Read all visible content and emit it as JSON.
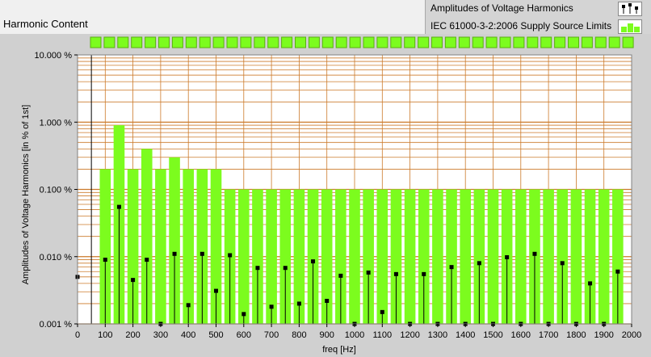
{
  "title": "Harmonic Content",
  "legend": {
    "items": [
      {
        "label": "Amplitudes of Voltage Harmonics",
        "icon": "stem-plot-icon"
      },
      {
        "label": "IEC 61000-3-2:2006 Supply Source Limits",
        "icon": "green-bar-icon"
      }
    ]
  },
  "colors": {
    "bar": "#7cfc1e",
    "grid": "#cc7a2a",
    "stem": "#000000",
    "plot_bg": "#ffffff"
  },
  "chart_data": {
    "type": "bar",
    "xlabel": "freq [Hz]",
    "ylabel": "Amplitudes of Voltage Harmonics [in % of 1st]",
    "x_ticks": [
      "0",
      "100",
      "200",
      "300",
      "400",
      "500",
      "600",
      "700",
      "800",
      "900",
      "1000",
      "1100",
      "1200",
      "1300",
      "1400",
      "1500",
      "1600",
      "1700",
      "1800",
      "1900",
      "2000"
    ],
    "y_ticks": [
      "10.000 %",
      "1.000 %",
      "0.100 %",
      "0.010 %",
      "0.001 %"
    ],
    "xlim": [
      0,
      2000
    ],
    "ylim": [
      0.001,
      10
    ],
    "yscale": "log",
    "series": [
      {
        "name": "IEC 61000-3-2:2006 Supply Source Limits",
        "type": "bar",
        "x": [
          100,
          150,
          200,
          250,
          300,
          350,
          400,
          450,
          500,
          550,
          600,
          650,
          700,
          750,
          800,
          850,
          900,
          950,
          1000,
          1050,
          1100,
          1150,
          1200,
          1250,
          1300,
          1350,
          1400,
          1450,
          1500,
          1550,
          1600,
          1650,
          1700,
          1750,
          1800,
          1850,
          1900,
          1950
        ],
        "values": [
          0.2,
          0.9,
          0.2,
          0.4,
          0.2,
          0.3,
          0.2,
          0.2,
          0.2,
          0.1,
          0.1,
          0.1,
          0.1,
          0.1,
          0.1,
          0.1,
          0.1,
          0.1,
          0.1,
          0.1,
          0.1,
          0.1,
          0.1,
          0.1,
          0.1,
          0.1,
          0.1,
          0.1,
          0.1,
          0.1,
          0.1,
          0.1,
          0.1,
          0.1,
          0.1,
          0.1,
          0.1,
          0.1
        ]
      },
      {
        "name": "Amplitudes of Voltage Harmonics",
        "type": "stem",
        "x": [
          0,
          100,
          150,
          200,
          250,
          300,
          350,
          400,
          450,
          500,
          550,
          600,
          650,
          700,
          750,
          800,
          850,
          900,
          950,
          1000,
          1050,
          1100,
          1150,
          1200,
          1250,
          1300,
          1350,
          1400,
          1450,
          1500,
          1550,
          1600,
          1650,
          1700,
          1750,
          1800,
          1850,
          1900,
          1950
        ],
        "values": [
          0.005,
          0.009,
          0.055,
          0.0045,
          0.009,
          0.001,
          0.011,
          0.0019,
          0.011,
          0.0031,
          0.0105,
          0.0014,
          0.0068,
          0.0018,
          0.0068,
          0.002,
          0.0085,
          0.0022,
          0.0052,
          0.001,
          0.0058,
          0.0015,
          0.0055,
          0.001,
          0.0055,
          0.001,
          0.007,
          0.001,
          0.008,
          0.001,
          0.0098,
          0.001,
          0.011,
          0.001,
          0.008,
          0.001,
          0.004,
          0.001,
          0.006
        ]
      }
    ],
    "cursor_line_x": 50
  }
}
